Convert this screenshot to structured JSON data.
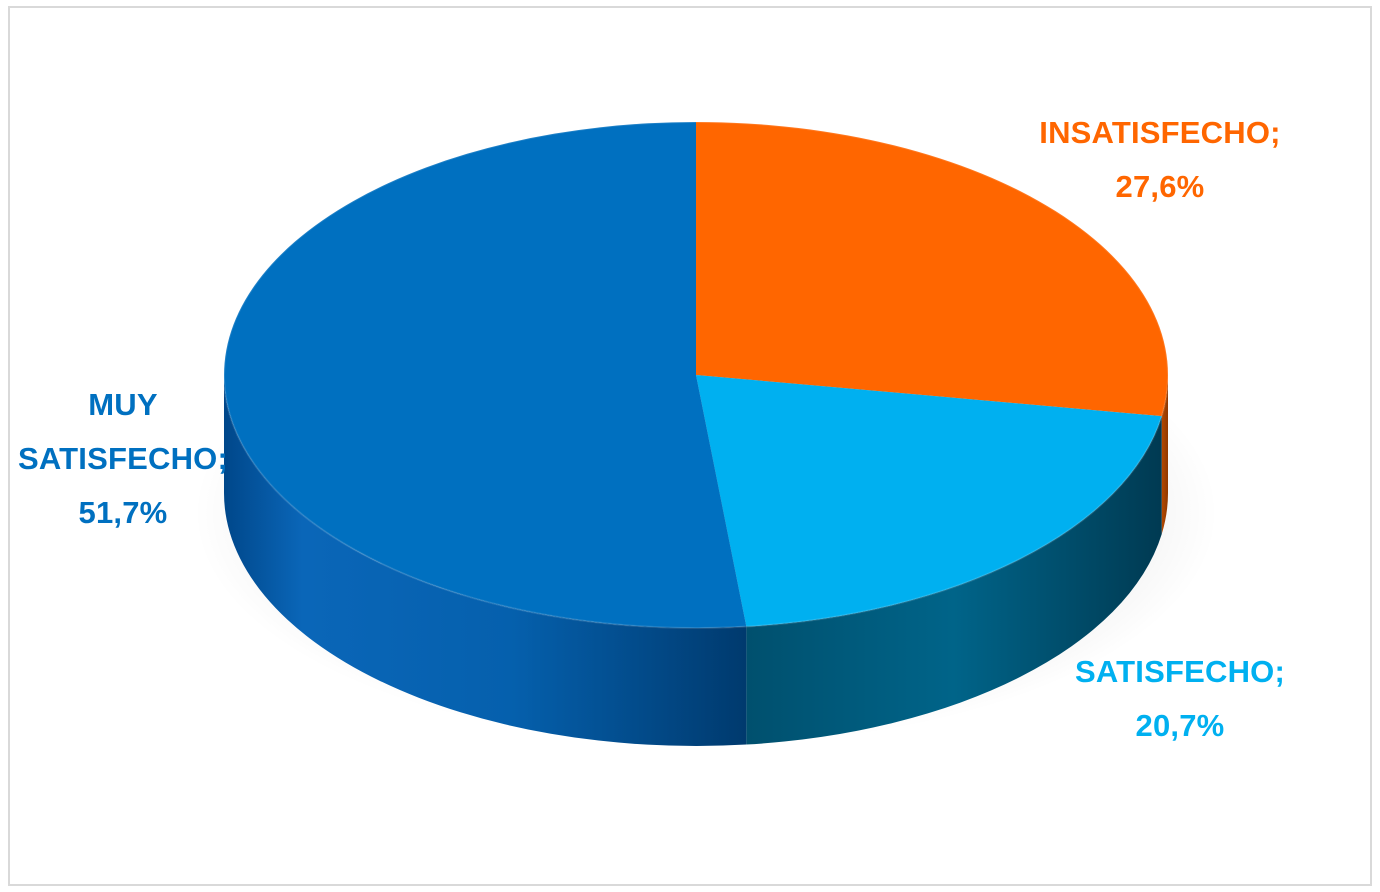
{
  "chart_data": {
    "type": "pie",
    "style": "3d",
    "title": "",
    "slices": [
      {
        "name": "INSATISFECHO",
        "value": 27.6,
        "label_name": "INSATISFECHO;",
        "label_value": "27,6%",
        "color": "#ff6600"
      },
      {
        "name": "SATISFECHO",
        "value": 20.7,
        "label_name": "SATISFECHO;",
        "label_value": "20,7%",
        "color": "#00b0f0"
      },
      {
        "name": "MUY SATISFECHO",
        "value": 51.7,
        "label_name_line1": "MUY",
        "label_name_line2": "SATISFECHO;",
        "label_value": "51,7%",
        "color": "#0070c0"
      }
    ],
    "legend": "none"
  }
}
